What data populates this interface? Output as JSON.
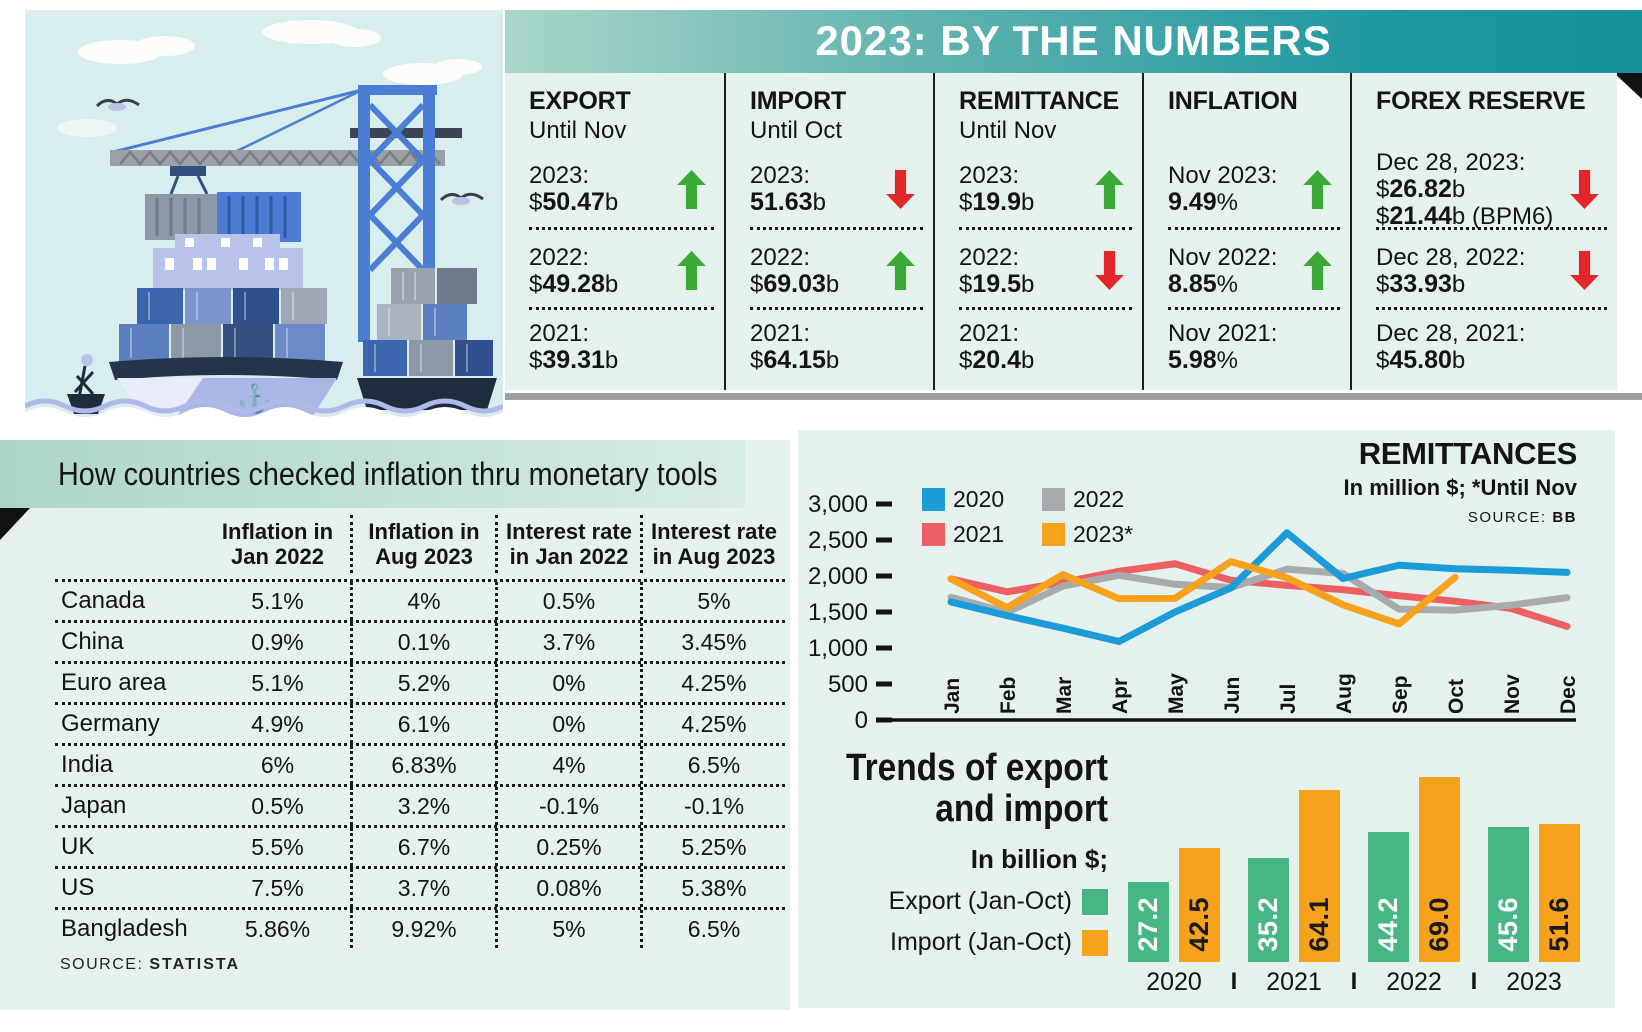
{
  "title_bar": {
    "title": "2023: BY THE NUMBERS"
  },
  "colors": {
    "header_teal": "#1d97a1",
    "panel_bg": "#e4f1ec",
    "band_green": "#aed6c8",
    "arrow_up": "#3aa935",
    "arrow_down": "#e3262a",
    "divider_gray": "#9aa1a4"
  },
  "stats_panel": {
    "columns": [
      {
        "title": "EXPORT",
        "subtitle": "Until Nov",
        "rows": [
          {
            "label": "2023:",
            "lines": [
              {
                "prefix": "$",
                "value": "50.47",
                "suffix": "b"
              }
            ],
            "arrow": "up"
          },
          {
            "label": "2022:",
            "lines": [
              {
                "prefix": "$",
                "value": "49.28",
                "suffix": "b"
              }
            ],
            "arrow": "up"
          },
          {
            "label": "2021:",
            "lines": [
              {
                "prefix": "$",
                "value": "39.31",
                "suffix": "b"
              }
            ],
            "arrow": null
          }
        ]
      },
      {
        "title": "IMPORT",
        "subtitle": "Until Oct",
        "rows": [
          {
            "label": "2023:",
            "lines": [
              {
                "prefix": "",
                "value": "51.63",
                "suffix": "b"
              }
            ],
            "arrow": "down"
          },
          {
            "label": "2022:",
            "lines": [
              {
                "prefix": "$",
                "value": "69.03",
                "suffix": "b"
              }
            ],
            "arrow": "up"
          },
          {
            "label": "2021:",
            "lines": [
              {
                "prefix": "$",
                "value": "64.15",
                "suffix": "b"
              }
            ],
            "arrow": null
          }
        ]
      },
      {
        "title": "REMITTANCE",
        "subtitle": "Until Nov",
        "rows": [
          {
            "label": "2023:",
            "lines": [
              {
                "prefix": "$",
                "value": "19.9",
                "suffix": "b"
              }
            ],
            "arrow": "up"
          },
          {
            "label": "2022:",
            "lines": [
              {
                "prefix": "$",
                "value": "19.5",
                "suffix": "b"
              }
            ],
            "arrow": "down"
          },
          {
            "label": "2021:",
            "lines": [
              {
                "prefix": "$",
                "value": "20.4",
                "suffix": "b"
              }
            ],
            "arrow": null
          }
        ]
      },
      {
        "title": "INFLATION",
        "subtitle": "",
        "rows": [
          {
            "label": "Nov 2023:",
            "lines": [
              {
                "prefix": "",
                "value": "9.49",
                "suffix": "%"
              }
            ],
            "arrow": "up"
          },
          {
            "label": "Nov 2022:",
            "lines": [
              {
                "prefix": "",
                "value": "8.85",
                "suffix": "%"
              }
            ],
            "arrow": "up"
          },
          {
            "label": "Nov 2021:",
            "lines": [
              {
                "prefix": "",
                "value": "5.98",
                "suffix": "%"
              }
            ],
            "arrow": null
          }
        ]
      },
      {
        "title": "FOREX RESERVE",
        "subtitle": "",
        "rows": [
          {
            "label": "Dec 28, 2023:",
            "lines": [
              {
                "prefix": "$",
                "value": "26.82",
                "suffix": "b"
              },
              {
                "prefix": "$",
                "value": "21.44",
                "suffix": "b (BPM6)"
              }
            ],
            "arrow": "down"
          },
          {
            "label": "Dec 28, 2022:",
            "lines": [
              {
                "prefix": "$",
                "value": "33.93",
                "suffix": "b"
              }
            ],
            "arrow": "down"
          },
          {
            "label": "Dec 28, 2021:",
            "lines": [
              {
                "prefix": "$",
                "value": "45.80",
                "suffix": "b"
              }
            ],
            "arrow": null
          }
        ]
      }
    ]
  },
  "chart_data": [
    {
      "type": "line",
      "title": "REMITTANCES",
      "subtitle": "In million $; *Until Nov",
      "source_label": "SOURCE:",
      "source": "BB",
      "xlabel": "",
      "ylabel": "",
      "ylim": [
        0,
        3000
      ],
      "ytick_labels": [
        "0",
        "500",
        "1,000",
        "1,500",
        "2,000",
        "2,500",
        "3,000"
      ],
      "grid": false,
      "legend_position": "top-left",
      "x_labels": [
        "Jan",
        "Feb",
        "Mar",
        "Apr",
        "May",
        "Jun",
        "Jul",
        "Aug",
        "Sep",
        "Oct",
        "Nov",
        "Dec"
      ],
      "series": [
        {
          "name": "2020",
          "color": "#1b9bd8",
          "values": [
            1640,
            1450,
            1275,
            1090,
            1500,
            1835,
            2600,
            1965,
            2150,
            2100,
            2080,
            2050
          ]
        },
        {
          "name": "2021",
          "color": "#ee5f63",
          "values": [
            1960,
            1780,
            1910,
            2065,
            2170,
            1940,
            1870,
            1810,
            1725,
            1650,
            1550,
            1300
          ]
        },
        {
          "name": "2022",
          "color": "#a8abae",
          "values": [
            1705,
            1495,
            1860,
            2010,
            1885,
            1840,
            2095,
            2035,
            1540,
            1525,
            1595,
            1700
          ]
        },
        {
          "name": "2023*",
          "color": "#f6a21c",
          "values": [
            1960,
            1560,
            2020,
            1685,
            1690,
            2200,
            1975,
            1600,
            1335,
            1980
          ]
        }
      ]
    },
    {
      "type": "bar",
      "title": "Trends of export and import",
      "title_lines": [
        "Trends of export",
        "and import"
      ],
      "subtitle": "In billion $;",
      "categories": [
        "2020",
        "2021",
        "2022",
        "2023"
      ],
      "category_separator": "I",
      "series": [
        {
          "name": "Export (Jan-Oct)",
          "color": "#47b584",
          "label_color": "#ffffff",
          "values": [
            27.2,
            35.2,
            44.2,
            45.6
          ],
          "display": [
            "27.2",
            "35.2",
            "44.2",
            "45.6"
          ]
        },
        {
          "name": "Import (Jan-Oct)",
          "color": "#f6a21c",
          "label_color": "#1a1a1a",
          "values": [
            42.5,
            64.1,
            69.0,
            51.6
          ],
          "display": [
            "42.5",
            "64.1",
            "69.0",
            "51.6"
          ]
        }
      ]
    },
    {
      "type": "table",
      "title": "How countries checked inflation thru monetary tools",
      "source_label": "SOURCE:",
      "source": "STATISTA",
      "column_lines": [
        [
          "Inflation in",
          "Jan 2022"
        ],
        [
          "Inflation in",
          "Aug 2023"
        ],
        [
          "Interest rate",
          "in Jan 2022"
        ],
        [
          "Interest rate",
          "in Aug 2023"
        ]
      ],
      "rows": [
        {
          "country": "Canada",
          "values": [
            "5.1%",
            "4%",
            "0.5%",
            "5%"
          ]
        },
        {
          "country": "China",
          "values": [
            "0.9%",
            "0.1%",
            "3.7%",
            "3.45%"
          ]
        },
        {
          "country": "Euro area",
          "values": [
            "5.1%",
            "5.2%",
            "0%",
            "4.25%"
          ]
        },
        {
          "country": "Germany",
          "values": [
            "4.9%",
            "6.1%",
            "0%",
            "4.25%"
          ]
        },
        {
          "country": "India",
          "values": [
            "6%",
            "6.83%",
            "4%",
            "6.5%"
          ]
        },
        {
          "country": "Japan",
          "values": [
            "0.5%",
            "3.2%",
            "-0.1%",
            "-0.1%"
          ]
        },
        {
          "country": "UK",
          "values": [
            "5.5%",
            "6.7%",
            "0.25%",
            "5.25%"
          ]
        },
        {
          "country": "US",
          "values": [
            "7.5%",
            "3.7%",
            "0.08%",
            "5.38%"
          ]
        },
        {
          "country": "Bangladesh",
          "values": [
            "5.86%",
            "9.92%",
            "5%",
            "6.5%"
          ]
        }
      ]
    }
  ]
}
